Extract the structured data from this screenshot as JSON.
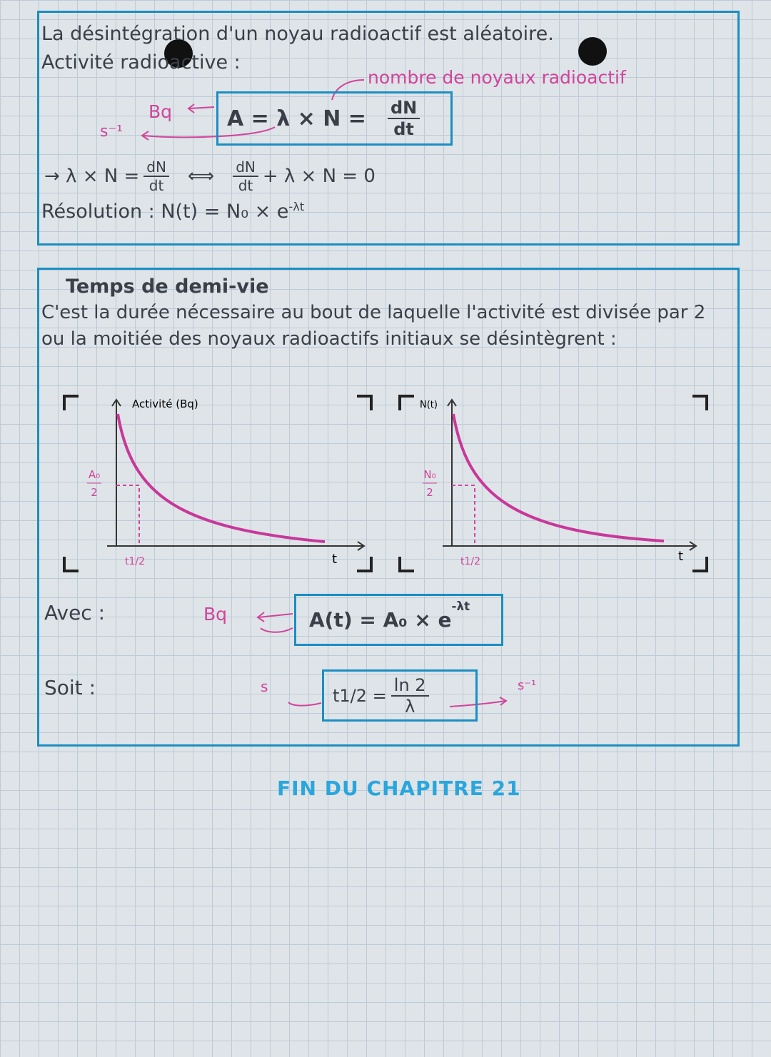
{
  "box1": {
    "line1": "La désintégration d'un noyau radioactif est aléatoire.",
    "line2": "Activité radioactive :",
    "annotation": "nombre de noyaux radioactif",
    "unit_activity": "Bq",
    "unit_lambda": "s⁻¹",
    "formula": {
      "lhs": "A = λ × N =",
      "num": "dN",
      "den": "dt"
    },
    "derivation": {
      "start": "→ λ × N =",
      "num1": "dN",
      "den1": "dt",
      "equiv": "⟺",
      "num2": "dN",
      "den2": "dt",
      "end": "+ λ × N = 0"
    },
    "resolution": {
      "label": "Résolution :",
      "expr": "N(t) = N₀ × e",
      "exponent": "-λt"
    }
  },
  "box2": {
    "title": "Temps de demi-vie",
    "text": "C'est la durée nécessaire au bout de laquelle l'activité est divisée par 2 ou la moitiée des noyaux radioactifs initiaux se désintègrent :",
    "graph1": {
      "y_label": "Activité (Bq)",
      "half_num": "A₀",
      "half_den": "2",
      "x_label": "t",
      "tick": "t1/2"
    },
    "graph2": {
      "y_label": "N(t)",
      "half_num": "N₀",
      "half_den": "2",
      "x_label": "t",
      "tick": "t1/2"
    },
    "avec": {
      "label": "Avec :",
      "unit": "Bq",
      "expr": "A(t) = A₀ × e",
      "exponent": "-λt"
    },
    "soit": {
      "label": "Soit :",
      "unit_left": "s",
      "lhs": "t1/2 =",
      "num": "ln 2",
      "den": "λ",
      "unit_right": "s⁻¹"
    }
  },
  "footer": "FIN DU CHAPITRE 21"
}
